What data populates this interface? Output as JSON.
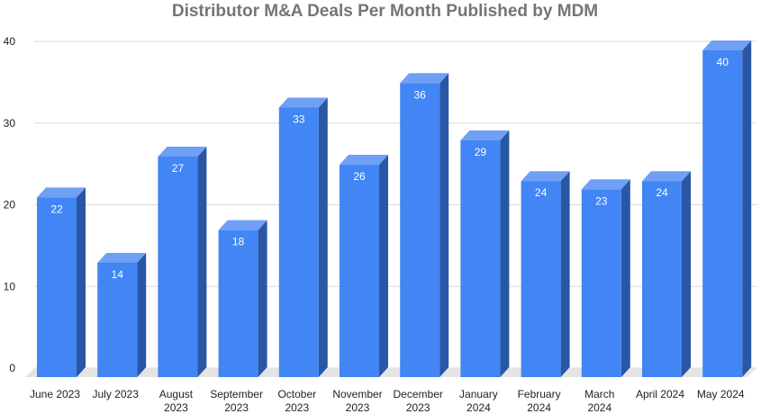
{
  "chart_data": {
    "type": "bar",
    "title": "Distributor M&A Deals Per Month Published by MDM",
    "xlabel": "",
    "ylabel": "",
    "ylim": [
      0,
      40
    ],
    "yticks": [
      0,
      10,
      20,
      30,
      40
    ],
    "grid": true,
    "legend": "none",
    "style": "3d",
    "categories": [
      [
        "June 2023"
      ],
      [
        "July 2023"
      ],
      [
        "August",
        "2023"
      ],
      [
        "September",
        "2023"
      ],
      [
        "October",
        "2023"
      ],
      [
        "November",
        "2023"
      ],
      [
        "December",
        "2023"
      ],
      [
        "January",
        "2024"
      ],
      [
        "February",
        "2024"
      ],
      [
        "March",
        "2024"
      ],
      [
        "April 2024"
      ],
      [
        "May 2024"
      ]
    ],
    "values": [
      22,
      14,
      27,
      18,
      33,
      26,
      36,
      29,
      24,
      23,
      24,
      40
    ],
    "colors": {
      "front": "#4285f4",
      "side": "#2a56a6",
      "top": "#6fa0f5",
      "floor": "#e4e4e4",
      "grid": "#d9d9d9"
    }
  }
}
